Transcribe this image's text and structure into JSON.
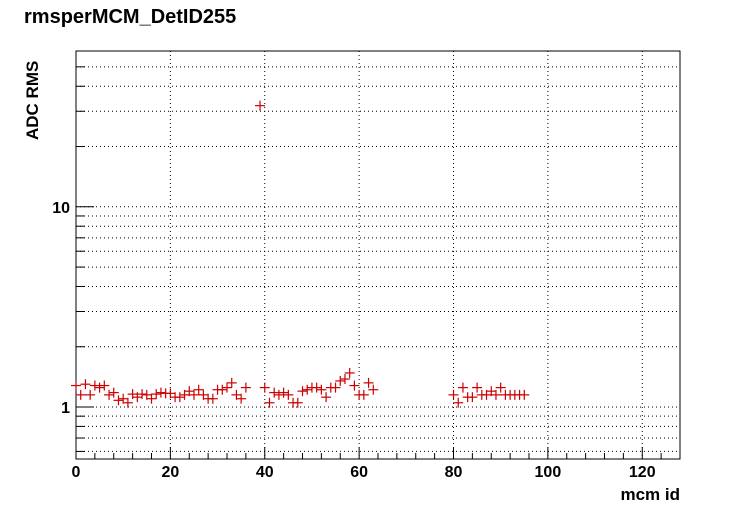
{
  "chart_data": {
    "type": "scatter",
    "title": "rmsperMCM_DetID255",
    "xlabel": "mcm id",
    "ylabel": "ADC RMS",
    "xlim": [
      0,
      128
    ],
    "ylim": [
      0.55,
      60
    ],
    "yscale": "log",
    "grid": true,
    "marker": "cross",
    "color": "#cc0000",
    "x_ticks": [
      0,
      20,
      40,
      60,
      80,
      100,
      120
    ],
    "x_tick_labels": [
      "0",
      "20",
      "40",
      "60",
      "80",
      "100",
      "120"
    ],
    "y_ticks": [
      1,
      10
    ],
    "y_tick_labels": [
      "1",
      "10"
    ],
    "points": [
      [
        0,
        1.28
      ],
      [
        1,
        1.15
      ],
      [
        2,
        1.3
      ],
      [
        3,
        1.15
      ],
      [
        4,
        1.28
      ],
      [
        5,
        1.25
      ],
      [
        6,
        1.28
      ],
      [
        7,
        1.15
      ],
      [
        8,
        1.18
      ],
      [
        9,
        1.08
      ],
      [
        10,
        1.1
      ],
      [
        11,
        1.05
      ],
      [
        12,
        1.16
      ],
      [
        13,
        1.12
      ],
      [
        14,
        1.16
      ],
      [
        15,
        1.15
      ],
      [
        16,
        1.1
      ],
      [
        17,
        1.16
      ],
      [
        18,
        1.18
      ],
      [
        19,
        1.17
      ],
      [
        20,
        1.17
      ],
      [
        21,
        1.12
      ],
      [
        22,
        1.12
      ],
      [
        23,
        1.15
      ],
      [
        24,
        1.2
      ],
      [
        25,
        1.15
      ],
      [
        26,
        1.22
      ],
      [
        27,
        1.15
      ],
      [
        28,
        1.1
      ],
      [
        29,
        1.1
      ],
      [
        30,
        1.22
      ],
      [
        31,
        1.22
      ],
      [
        32,
        1.25
      ],
      [
        33,
        1.32
      ],
      [
        34,
        1.15
      ],
      [
        35,
        1.1
      ],
      [
        36,
        1.25
      ],
      [
        39,
        32
      ],
      [
        40,
        1.25
      ],
      [
        41,
        1.05
      ],
      [
        42,
        1.18
      ],
      [
        43,
        1.15
      ],
      [
        44,
        1.18
      ],
      [
        45,
        1.15
      ],
      [
        46,
        1.05
      ],
      [
        47,
        1.05
      ],
      [
        48,
        1.2
      ],
      [
        49,
        1.22
      ],
      [
        50,
        1.25
      ],
      [
        51,
        1.25
      ],
      [
        52,
        1.22
      ],
      [
        53,
        1.12
      ],
      [
        54,
        1.25
      ],
      [
        55,
        1.25
      ],
      [
        56,
        1.35
      ],
      [
        57,
        1.38
      ],
      [
        58,
        1.48
      ],
      [
        59,
        1.28
      ],
      [
        60,
        1.15
      ],
      [
        61,
        1.15
      ],
      [
        62,
        1.32
      ],
      [
        63,
        1.22
      ],
      [
        80,
        1.15
      ],
      [
        81,
        1.05
      ],
      [
        82,
        1.25
      ],
      [
        83,
        1.12
      ],
      [
        84,
        1.12
      ],
      [
        85,
        1.25
      ],
      [
        86,
        1.15
      ],
      [
        87,
        1.15
      ],
      [
        88,
        1.2
      ],
      [
        89,
        1.15
      ],
      [
        90,
        1.25
      ],
      [
        91,
        1.15
      ],
      [
        92,
        1.15
      ],
      [
        93,
        1.15
      ],
      [
        94,
        1.15
      ],
      [
        95,
        1.15
      ]
    ]
  }
}
